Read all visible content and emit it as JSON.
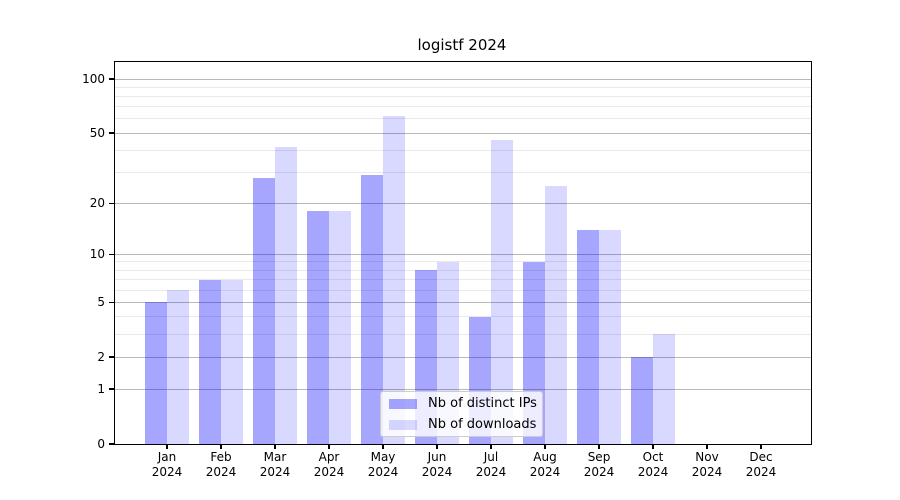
{
  "title": "logistf 2024",
  "chart_data": {
    "type": "bar",
    "title": "logistf 2024",
    "categories": [
      "Jan",
      "Feb",
      "Mar",
      "Apr",
      "May",
      "Jun",
      "Jul",
      "Aug",
      "Sep",
      "Oct",
      "Nov",
      "Dec"
    ],
    "year_label": "2024",
    "series": [
      {
        "name": "Nb of distinct IPs",
        "color": "rgba(0,0,255,0.35)",
        "values": [
          5,
          7,
          28,
          18,
          29,
          8,
          4,
          9,
          14,
          2,
          0,
          0
        ]
      },
      {
        "name": "Nb of downloads",
        "color": "rgba(0,0,255,0.15)",
        "values": [
          6,
          7,
          42,
          18,
          62,
          9,
          46,
          25,
          14,
          3,
          0,
          0
        ]
      }
    ],
    "scale": "log1p",
    "ylim": [
      0,
      130
    ],
    "y_major_ticks": [
      0,
      1,
      2,
      5,
      10,
      20,
      50,
      100
    ],
    "y_minor_ticks": [
      3,
      4,
      6,
      7,
      8,
      9,
      30,
      40,
      60,
      70,
      80,
      90
    ],
    "grid": true,
    "legend_position": "lower center",
    "colors": {
      "major_grid": "#b8b8b8",
      "minor_grid": "#e9e9e9",
      "spine": "#000000",
      "bar_distinct_ips": "rgba(0,0,255,0.35)",
      "bar_downloads": "rgba(0,0,255,0.15)"
    }
  },
  "legend": {
    "items": [
      {
        "label": "Nb of distinct IPs"
      },
      {
        "label": "Nb of downloads"
      }
    ]
  }
}
